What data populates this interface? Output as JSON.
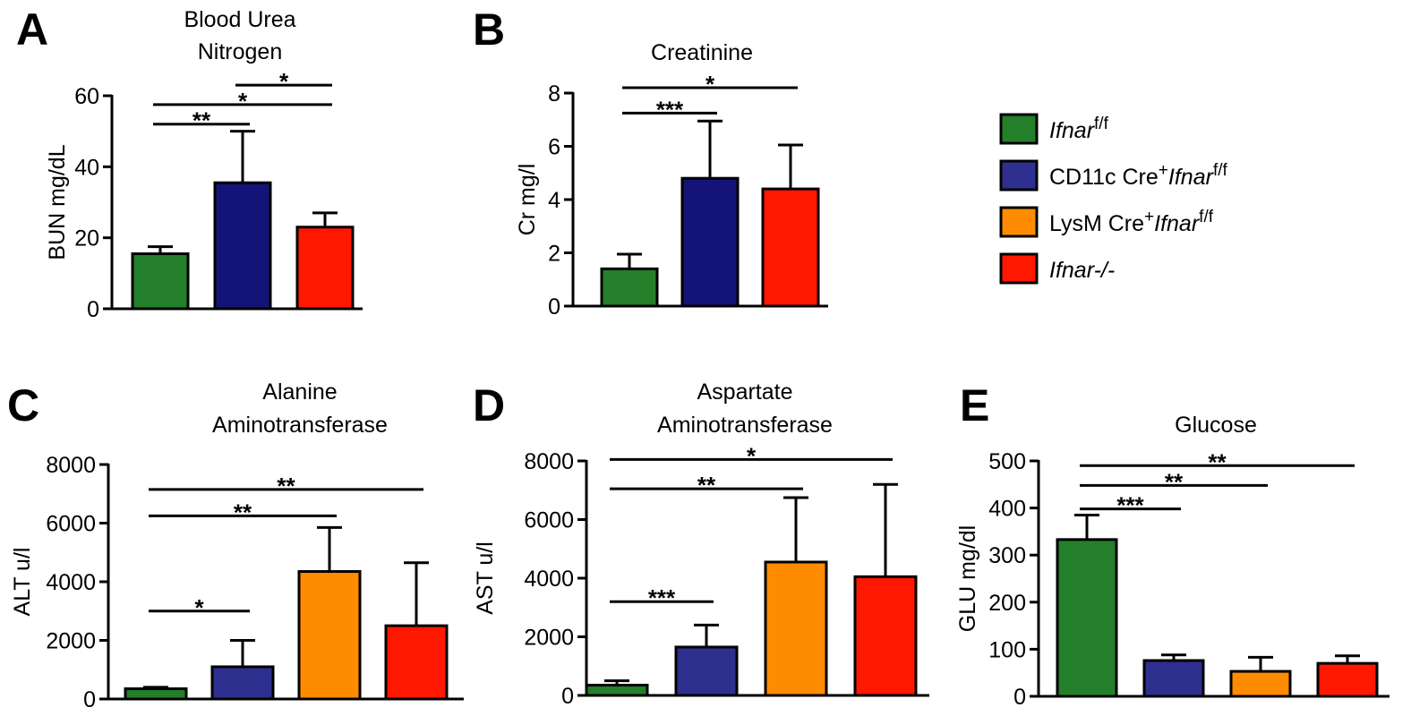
{
  "legend": {
    "items": [
      {
        "key": "ifnar_ff",
        "color": "#237f2a",
        "parts": [
          [
            "i",
            "Ifnar"
          ],
          [
            "sup",
            "f/f"
          ]
        ]
      },
      {
        "key": "cd11c",
        "color": "#2e2f8f",
        "parts": [
          [
            "n",
            "CD11c Cre"
          ],
          [
            "sup",
            "+"
          ],
          [
            "i",
            "Ifnar"
          ],
          [
            "sup",
            "f/f"
          ]
        ]
      },
      {
        "key": "lysm",
        "color": "#ff8c00",
        "parts": [
          [
            "n",
            "LysM Cre"
          ],
          [
            "sup",
            "+"
          ],
          [
            "i",
            "Ifnar"
          ],
          [
            "sup",
            "f/f"
          ]
        ]
      },
      {
        "key": "ko",
        "color": "#ff1800",
        "parts": [
          [
            "i",
            "Ifnar-/-"
          ]
        ]
      }
    ]
  },
  "colors": {
    "ifnar_ff": "#237f2a",
    "cd11c": "#2e2f8f",
    "cd11c_dark": "#141478",
    "lysm": "#ff8c00",
    "ko": "#ff1800"
  },
  "chart_data": [
    {
      "panel": "A",
      "type": "bar",
      "title": [
        "Blood Urea",
        "Nitrogen"
      ],
      "ylabel": "BUN mg/dL",
      "ylim": [
        0,
        60
      ],
      "yticks": [
        0,
        20,
        40,
        60
      ],
      "bars": [
        {
          "group": "ifnar_ff",
          "value": 15.5,
          "error": 2,
          "colorKey": "ifnar_ff"
        },
        {
          "group": "cd11c",
          "value": 35.5,
          "error": 14.5,
          "colorKey": "cd11c_dark"
        },
        {
          "group": "ko",
          "value": 23,
          "error": 4,
          "colorKey": "ko"
        }
      ],
      "significance": [
        {
          "from": 0,
          "to": 1,
          "y": 52,
          "label": "**"
        },
        {
          "from": 0,
          "to": 2,
          "y": 57.5,
          "label": "*"
        },
        {
          "from": 1,
          "to": 2,
          "y": 63,
          "label": "*"
        }
      ]
    },
    {
      "panel": "B",
      "type": "bar",
      "title": [
        "Creatinine"
      ],
      "ylabel": "Cr mg/l",
      "ylim": [
        0,
        8
      ],
      "yticks": [
        0,
        2,
        4,
        6,
        8
      ],
      "bars": [
        {
          "group": "ifnar_ff",
          "value": 1.4,
          "error": 0.55,
          "colorKey": "ifnar_ff"
        },
        {
          "group": "cd11c",
          "value": 4.8,
          "error": 2.15,
          "colorKey": "cd11c_dark"
        },
        {
          "group": "ko",
          "value": 4.4,
          "error": 1.65,
          "colorKey": "ko"
        }
      ],
      "significance": [
        {
          "from": 0,
          "to": 1,
          "y": 7.25,
          "label": "***"
        },
        {
          "from": 0,
          "to": 2,
          "y": 8.2,
          "label": "*"
        }
      ]
    },
    {
      "panel": "C",
      "type": "bar",
      "title": [
        "Alanine",
        "Aminotransferase"
      ],
      "ylabel": "ALT u/l",
      "ylim": [
        0,
        8000
      ],
      "yticks": [
        0,
        2000,
        4000,
        6000,
        8000
      ],
      "bars": [
        {
          "group": "ifnar_ff",
          "value": 350,
          "error": 50,
          "colorKey": "ifnar_ff"
        },
        {
          "group": "cd11c",
          "value": 1100,
          "error": 900,
          "colorKey": "cd11c"
        },
        {
          "group": "lysm",
          "value": 4350,
          "error": 1500,
          "colorKey": "lysm"
        },
        {
          "group": "ko",
          "value": 2500,
          "error": 2150,
          "colorKey": "ko"
        }
      ],
      "significance": [
        {
          "from": 0,
          "to": 1,
          "y": 3000,
          "label": "*"
        },
        {
          "from": 0,
          "to": 2,
          "y": 6250,
          "label": "**"
        },
        {
          "from": 0,
          "to": 3,
          "y": 7150,
          "label": "**"
        }
      ]
    },
    {
      "panel": "D",
      "type": "bar",
      "title": [
        "Aspartate",
        "Aminotransferase"
      ],
      "ylabel": "AST  u/l",
      "ylim": [
        0,
        8000
      ],
      "yticks": [
        0,
        2000,
        4000,
        6000,
        8000
      ],
      "bars": [
        {
          "group": "ifnar_ff",
          "value": 350,
          "error": 150,
          "colorKey": "ifnar_ff"
        },
        {
          "group": "cd11c",
          "value": 1650,
          "error": 750,
          "colorKey": "cd11c"
        },
        {
          "group": "lysm",
          "value": 4550,
          "error": 2200,
          "colorKey": "lysm"
        },
        {
          "group": "ko",
          "value": 4050,
          "error": 3150,
          "colorKey": "ko"
        }
      ],
      "significance": [
        {
          "from": 0,
          "to": 1,
          "y": 3200,
          "label": "***"
        },
        {
          "from": 0,
          "to": 2,
          "y": 7050,
          "label": "**"
        },
        {
          "from": 0,
          "to": 3,
          "y": 8050,
          "label": "*"
        }
      ]
    },
    {
      "panel": "E",
      "type": "bar",
      "title": [
        "Glucose"
      ],
      "ylabel": "GLU mg/dl",
      "ylim": [
        0,
        500
      ],
      "yticks": [
        0,
        100,
        200,
        300,
        400,
        500
      ],
      "bars": [
        {
          "group": "ifnar_ff",
          "value": 333,
          "error": 52,
          "colorKey": "ifnar_ff"
        },
        {
          "group": "cd11c",
          "value": 76,
          "error": 12,
          "colorKey": "cd11c"
        },
        {
          "group": "lysm",
          "value": 53,
          "error": 30,
          "colorKey": "lysm"
        },
        {
          "group": "ko",
          "value": 70,
          "error": 16,
          "colorKey": "ko"
        }
      ],
      "significance": [
        {
          "from": 0,
          "to": 1,
          "y": 398,
          "label": "***"
        },
        {
          "from": 0,
          "to": 2,
          "y": 448,
          "label": "**"
        },
        {
          "from": 0,
          "to": 3,
          "y": 490,
          "label": "**"
        }
      ]
    }
  ]
}
